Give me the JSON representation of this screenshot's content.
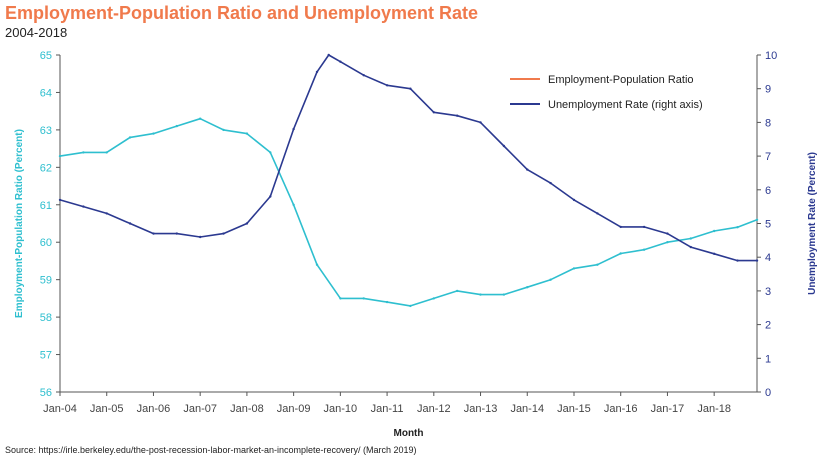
{
  "title": "Employment-Population Ratio and Unemployment Rate",
  "subtitle": "2004-2018",
  "source": "Source: https://irle.berkeley.edu/the-post-recession-labor-market-an-incomplete-recovery/ (March 2019)",
  "colors": {
    "title": "#f07a4c",
    "epop": "#2ebfcf",
    "unemp": "#2b3990",
    "legend_epop": "#f07a4c",
    "legend_unemp": "#2b3990"
  },
  "chart_data": {
    "type": "line",
    "title": "Employment-Population Ratio and Unemployment Rate",
    "subtitle": "2004-2018",
    "xlabel": "Month",
    "ylabel_left": "Employment-Population Ratio (Percent)",
    "ylabel_right": "Unemployment Rate (Percent)",
    "ylim_left": [
      56,
      65
    ],
    "ylim_right": [
      0,
      10
    ],
    "left_ticks": [
      "56",
      "57",
      "58",
      "59",
      "60",
      "61",
      "62",
      "63",
      "64",
      "65"
    ],
    "right_ticks": [
      "0",
      "1",
      "2",
      "3",
      "4",
      "5",
      "6",
      "7",
      "8",
      "9",
      "10"
    ],
    "x_tick_labels": [
      "Jan-04",
      "Jan-05",
      "Jan-06",
      "Jan-07",
      "Jan-08",
      "Jan-09",
      "Jan-10",
      "Jan-11",
      "Jan-12",
      "Jan-13",
      "Jan-14",
      "Jan-15",
      "Jan-16",
      "Jan-17",
      "Jan-18"
    ],
    "x_start": "Jan-04",
    "x_end": "Dec-18",
    "grid": false,
    "legend_position": "top-right",
    "series": [
      {
        "name": "Employment-Population Ratio",
        "axis": "left",
        "points": [
          [
            "Jan-04",
            62.3
          ],
          [
            "Jul-04",
            62.4
          ],
          [
            "Jan-05",
            62.4
          ],
          [
            "Jul-05",
            62.8
          ],
          [
            "Jan-06",
            62.9
          ],
          [
            "Jul-06",
            63.1
          ],
          [
            "Jan-07",
            63.3
          ],
          [
            "Jul-07",
            63.0
          ],
          [
            "Jan-08",
            62.9
          ],
          [
            "Jul-08",
            62.4
          ],
          [
            "Jan-09",
            61.0
          ],
          [
            "Jul-09",
            59.4
          ],
          [
            "Jan-10",
            58.5
          ],
          [
            "Jul-10",
            58.5
          ],
          [
            "Jan-11",
            58.4
          ],
          [
            "Jul-11",
            58.3
          ],
          [
            "Jan-12",
            58.5
          ],
          [
            "Jul-12",
            58.7
          ],
          [
            "Jan-13",
            58.6
          ],
          [
            "Jul-13",
            58.6
          ],
          [
            "Jan-14",
            58.8
          ],
          [
            "Jul-14",
            59.0
          ],
          [
            "Jan-15",
            59.3
          ],
          [
            "Jul-15",
            59.4
          ],
          [
            "Jan-16",
            59.7
          ],
          [
            "Jul-16",
            59.8
          ],
          [
            "Jan-17",
            60.0
          ],
          [
            "Jul-17",
            60.1
          ],
          [
            "Jan-18",
            60.3
          ],
          [
            "Jul-18",
            60.4
          ],
          [
            "Dec-18",
            60.6
          ]
        ]
      },
      {
        "name": "Unemployment Rate (right axis)",
        "axis": "right",
        "points": [
          [
            "Jan-04",
            5.7
          ],
          [
            "Jul-04",
            5.5
          ],
          [
            "Jan-05",
            5.3
          ],
          [
            "Jul-05",
            5.0
          ],
          [
            "Jan-06",
            4.7
          ],
          [
            "Jul-06",
            4.7
          ],
          [
            "Jan-07",
            4.6
          ],
          [
            "Jul-07",
            4.7
          ],
          [
            "Jan-08",
            5.0
          ],
          [
            "Jul-08",
            5.8
          ],
          [
            "Jan-09",
            7.8
          ],
          [
            "Jul-09",
            9.5
          ],
          [
            "Oct-09",
            10.0
          ],
          [
            "Jan-10",
            9.8
          ],
          [
            "Jul-10",
            9.4
          ],
          [
            "Jan-11",
            9.1
          ],
          [
            "Jul-11",
            9.0
          ],
          [
            "Jan-12",
            8.3
          ],
          [
            "Jul-12",
            8.2
          ],
          [
            "Jan-13",
            8.0
          ],
          [
            "Jul-13",
            7.3
          ],
          [
            "Jan-14",
            6.6
          ],
          [
            "Jul-14",
            6.2
          ],
          [
            "Jan-15",
            5.7
          ],
          [
            "Jul-15",
            5.3
          ],
          [
            "Jan-16",
            4.9
          ],
          [
            "Jul-16",
            4.9
          ],
          [
            "Jan-17",
            4.7
          ],
          [
            "Jul-17",
            4.3
          ],
          [
            "Jan-18",
            4.1
          ],
          [
            "Jul-18",
            3.9
          ],
          [
            "Dec-18",
            3.9
          ]
        ]
      }
    ]
  }
}
